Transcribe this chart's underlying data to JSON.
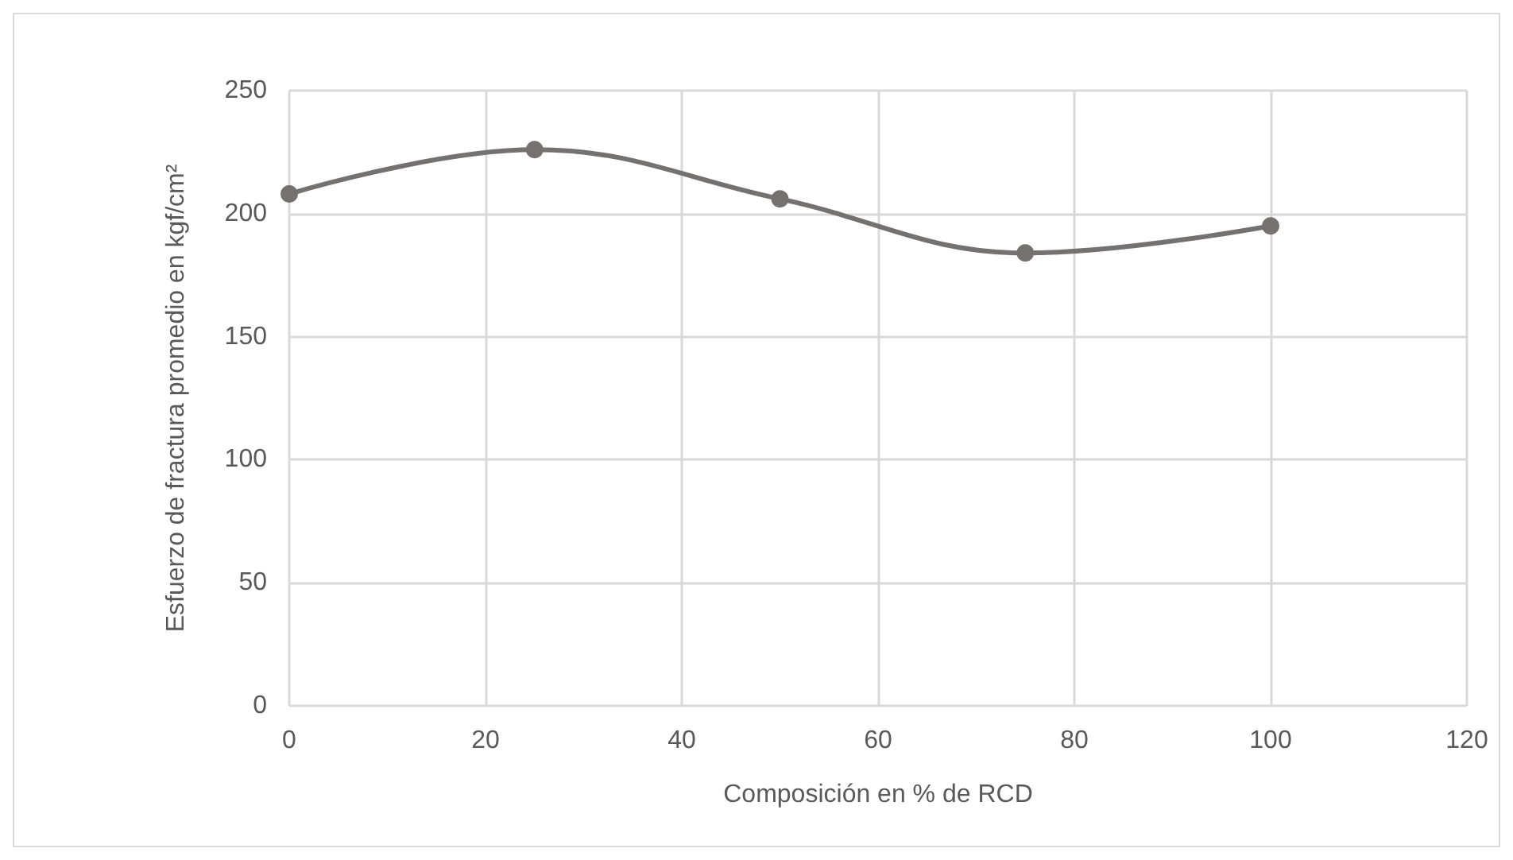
{
  "chart_data": {
    "type": "line",
    "xlabel": "Composición en % de RCD",
    "ylabel": "Esfuerzo de fractura promedio en kgf/cm²",
    "x": [
      0,
      25,
      50,
      75,
      100
    ],
    "series": [
      {
        "color": "#767171",
        "values": [
          208,
          226,
          206,
          184,
          195
        ]
      }
    ],
    "xlim": [
      0,
      120
    ],
    "xticks": [
      0,
      20,
      40,
      60,
      80,
      100,
      120
    ],
    "ylim": [
      0,
      250
    ],
    "yticks": [
      0,
      50,
      100,
      150,
      200,
      250
    ],
    "grid": true,
    "marker": "circle",
    "line_style": "solid"
  }
}
